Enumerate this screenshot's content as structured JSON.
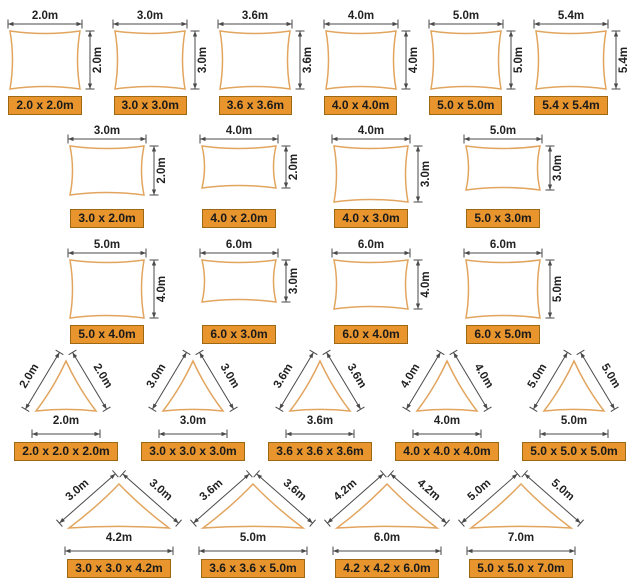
{
  "colors": {
    "background": "#FFFFFF",
    "sail_stroke": "#E2A55F",
    "sail_fill": "#FFFFFF",
    "badge_bg": "#E8952E",
    "badge_border": "#9C6814",
    "badge_text": "#1A1A1A",
    "dim_line": "#4A4A4A",
    "dim_text": "#222222"
  },
  "unit": "m",
  "rows": [
    {
      "shape": "square",
      "items": [
        {
          "top": "2.0m",
          "side": "2.0m",
          "badge": "2.0 x 2.0m"
        },
        {
          "top": "3.0m",
          "side": "3.0m",
          "badge": "3.0 x 3.0m"
        },
        {
          "top": "3.6m",
          "side": "3.6m",
          "badge": "3.6 x 3.6m"
        },
        {
          "top": "4.0m",
          "side": "4.0m",
          "badge": "4.0 x 4.0m"
        },
        {
          "top": "5.0m",
          "side": "5.0m",
          "badge": "5.0 x 5.0m"
        },
        {
          "top": "5.4m",
          "side": "5.4m",
          "badge": "5.4 x 5.4m"
        }
      ]
    },
    {
      "shape": "rectangle",
      "items": [
        {
          "top": "3.0m",
          "side": "2.0m",
          "badge": "3.0 x 2.0m"
        },
        {
          "top": "4.0m",
          "side": "2.0m",
          "badge": "4.0 x 2.0m"
        },
        {
          "top": "4.0m",
          "side": "3.0m",
          "badge": "4.0 x 3.0m"
        },
        {
          "top": "5.0m",
          "side": "3.0m",
          "badge": "5.0 x 3.0m"
        }
      ]
    },
    {
      "shape": "rectangle",
      "items": [
        {
          "top": "5.0m",
          "side": "4.0m",
          "badge": "5.0 x 4.0m"
        },
        {
          "top": "6.0m",
          "side": "3.0m",
          "badge": "6.0 x 3.0m"
        },
        {
          "top": "6.0m",
          "side": "4.0m",
          "badge": "6.0 x 4.0m"
        },
        {
          "top": "6.0m",
          "side": "5.0m",
          "badge": "6.0 x 5.0m"
        }
      ]
    },
    {
      "shape": "triangle",
      "items": [
        {
          "left": "2.0m",
          "right": "2.0m",
          "base": "2.0m",
          "badge": "2.0 x 2.0 x 2.0m"
        },
        {
          "left": "3.0m",
          "right": "3.0m",
          "base": "3.0m",
          "badge": "3.0 x 3.0 x 3.0m"
        },
        {
          "left": "3.6m",
          "right": "3.6m",
          "base": "3.6m",
          "badge": "3.6 x 3.6 x 3.6m"
        },
        {
          "left": "4.0m",
          "right": "4.0m",
          "base": "4.0m",
          "badge": "4.0 x 4.0 x 4.0m"
        },
        {
          "left": "5.0m",
          "right": "5.0m",
          "base": "5.0m",
          "badge": "5.0 x 5.0 x 5.0m"
        }
      ]
    },
    {
      "shape": "triangle",
      "items": [
        {
          "left": "3.0m",
          "right": "3.0m",
          "base": "4.2m",
          "badge": "3.0 x 3.0 x 4.2m"
        },
        {
          "left": "3.6m",
          "right": "3.6m",
          "base": "5.0m",
          "badge": "3.6 x 3.6 x 5.0m"
        },
        {
          "left": "4.2m",
          "right": "4.2m",
          "base": "6.0m",
          "badge": "4.2 x 4.2 x 6.0m"
        },
        {
          "left": "5.0m",
          "right": "5.0m",
          "base": "7.0m",
          "badge": "5.0 x 5.0 x 7.0m"
        }
      ]
    }
  ]
}
